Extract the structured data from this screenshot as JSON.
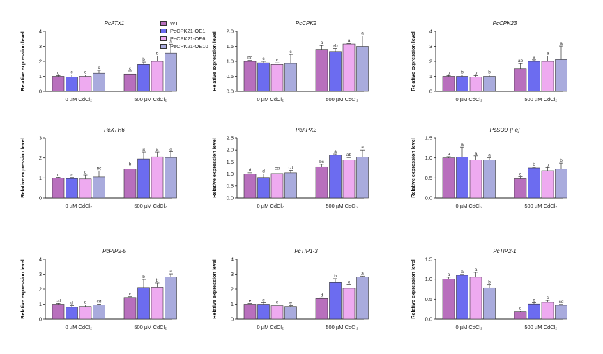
{
  "legend": [
    {
      "name": "WT",
      "color": "#b86fbd"
    },
    {
      "name": "PeCPK21-OE1",
      "color": "#6c6cf0"
    },
    {
      "name": "PeCPK21-OE6",
      "color": "#eeaaf0"
    },
    {
      "name": "PeCPK21-OE10",
      "color": "#a9abdd"
    }
  ],
  "chart_data": [
    {
      "type": "bar",
      "title": "PcATX1",
      "ylabel": "Relative expression level",
      "ylim": [
        0,
        4
      ],
      "yticks": [
        0,
        1,
        2,
        3,
        4
      ],
      "ytick_labels": [
        "0",
        "1",
        "2",
        "3",
        "4"
      ],
      "groups": [
        {
          "label": "0 µM CdCl₂",
          "values": [
            1.0,
            0.95,
            1.0,
            1.2
          ],
          "errors": [
            0.05,
            0.15,
            0.1,
            0.2
          ],
          "letters": [
            "c",
            "c",
            "c",
            "c"
          ]
        },
        {
          "label": "500 µM CdCl₂",
          "values": [
            1.15,
            1.8,
            2.0,
            2.55
          ],
          "errors": [
            0.2,
            0.15,
            0.35,
            0.6
          ],
          "letters": [
            "c",
            "b",
            "b",
            "a"
          ]
        }
      ]
    },
    {
      "type": "bar",
      "title": "PcCPK2",
      "ylabel": "Relative expression level",
      "ylim": [
        0,
        2
      ],
      "yticks": [
        0,
        0.5,
        1,
        1.5,
        2
      ],
      "ytick_labels": [
        "0.0",
        "0.5",
        "1.0",
        "1.5",
        "2.0"
      ],
      "groups": [
        {
          "label": "0 µM CdCl₂",
          "values": [
            1.0,
            0.95,
            0.9,
            0.93
          ],
          "errors": [
            0.03,
            0.05,
            0.05,
            0.3
          ],
          "letters": [
            "bc",
            "c",
            "c",
            "c"
          ]
        },
        {
          "label": "500 µM CdCl₂",
          "values": [
            1.38,
            1.33,
            1.58,
            1.5
          ],
          "errors": [
            0.15,
            0.1,
            0.02,
            0.35
          ],
          "letters": [
            "a",
            "ab",
            "a",
            "a"
          ]
        }
      ]
    },
    {
      "type": "bar",
      "title": "PcCPK23",
      "ylabel": "Relative expression level",
      "ylim": [
        0,
        4
      ],
      "yticks": [
        0,
        1,
        2,
        3,
        4
      ],
      "ytick_labels": [
        "0",
        "1",
        "2",
        "3",
        "4"
      ],
      "groups": [
        {
          "label": "0 µM CdCl₂",
          "values": [
            1.0,
            1.0,
            0.95,
            1.0
          ],
          "errors": [
            0.05,
            0.1,
            0.1,
            0.1
          ],
          "letters": [
            "b",
            "b",
            "b",
            "b"
          ]
        },
        {
          "label": "500 µM CdCl₂",
          "values": [
            1.5,
            2.0,
            2.0,
            2.12
          ],
          "errors": [
            0.35,
            0.1,
            0.35,
            0.9
          ],
          "letters": [
            "ab",
            "a",
            "a",
            "a"
          ]
        }
      ]
    },
    {
      "type": "bar",
      "title": "PcXTH6",
      "ylabel": "Relative expression level",
      "ylim": [
        0,
        3
      ],
      "yticks": [
        0,
        1,
        2,
        3
      ],
      "ytick_labels": [
        "0",
        "1",
        "2",
        "3"
      ],
      "groups": [
        {
          "label": "0 µM CdCl₂",
          "values": [
            1.0,
            0.97,
            0.95,
            1.05
          ],
          "errors": [
            0.03,
            0.05,
            0.2,
            0.3
          ],
          "letters": [
            "c",
            "c",
            "c",
            "bc"
          ]
        },
        {
          "label": "500 µM CdCl₂",
          "values": [
            1.45,
            1.95,
            2.05,
            2.02
          ],
          "errors": [
            0.1,
            0.35,
            0.25,
            0.3
          ],
          "letters": [
            "b",
            "a",
            "a",
            "a"
          ]
        }
      ]
    },
    {
      "type": "bar",
      "title": "PcAPX2",
      "ylabel": "Relative expression level",
      "ylim": [
        0,
        2.5
      ],
      "yticks": [
        0,
        0.5,
        1,
        1.5,
        2,
        2.5
      ],
      "ytick_labels": [
        "0.0",
        "0.5",
        "1.0",
        "1.5",
        "2.0",
        "2.5"
      ],
      "groups": [
        {
          "label": "0 µM CdCl₂",
          "values": [
            1.0,
            0.85,
            1.02,
            1.05
          ],
          "errors": [
            0.05,
            0.15,
            0.1,
            0.1
          ],
          "letters": [
            "d",
            "d",
            "cd",
            "cd"
          ]
        },
        {
          "label": "500 µM CdCl₂",
          "values": [
            1.3,
            1.78,
            1.58,
            1.7
          ],
          "errors": [
            0.1,
            0.05,
            0.1,
            0.3
          ],
          "letters": [
            "bc",
            "a",
            "ab",
            "a"
          ]
        }
      ]
    },
    {
      "type": "bar",
      "title": "PcSOD [Fe]",
      "ylabel": "Relative expression level",
      "ylim": [
        0,
        1.5
      ],
      "yticks": [
        0,
        0.5,
        1,
        1.5
      ],
      "ytick_labels": [
        "0.0",
        "0.5",
        "1.0",
        "1.5"
      ],
      "groups": [
        {
          "label": "0 µM CdCl₂",
          "values": [
            1.0,
            1.02,
            0.95,
            0.95
          ],
          "errors": [
            0.03,
            0.25,
            0.1,
            0.05
          ],
          "letters": [
            "a",
            "a",
            "a",
            "a"
          ]
        },
        {
          "label": "500 µM CdCl₂",
          "values": [
            0.48,
            0.75,
            0.68,
            0.72
          ],
          "errors": [
            0.05,
            0.02,
            0.08,
            0.15
          ],
          "letters": [
            "c",
            "b",
            "b",
            "b"
          ]
        }
      ]
    },
    {
      "type": "bar",
      "title": "PcPIP2-5",
      "ylabel": "Relative expression level",
      "ylim": [
        0,
        4
      ],
      "yticks": [
        0,
        1,
        2,
        3,
        4
      ],
      "ytick_labels": [
        "0",
        "1",
        "2",
        "3",
        "4"
      ],
      "groups": [
        {
          "label": "0 µM CdCl₂",
          "values": [
            1.0,
            0.8,
            0.85,
            0.95
          ],
          "errors": [
            0.05,
            0.1,
            0.1,
            0.05
          ],
          "letters": [
            "cd",
            "d",
            "d",
            "cd"
          ]
        },
        {
          "label": "500 µM CdCl₂",
          "values": [
            1.45,
            2.1,
            2.12,
            2.82
          ],
          "errors": [
            0.05,
            0.55,
            0.3,
            0.2
          ],
          "letters": [
            "c",
            "b",
            "b",
            "a"
          ]
        }
      ]
    },
    {
      "type": "bar",
      "title": "PcTIP1-3",
      "ylabel": "Relative expression level",
      "ylim": [
        0,
        4
      ],
      "yticks": [
        0,
        1,
        2,
        3,
        4
      ],
      "ytick_labels": [
        "0",
        "1",
        "2",
        "3",
        "4"
      ],
      "groups": [
        {
          "label": "0 µM CdCl₂",
          "values": [
            1.0,
            1.0,
            0.9,
            0.85
          ],
          "errors": [
            0.05,
            0.1,
            0.05,
            0.05
          ],
          "letters": [
            "e",
            "e",
            "e",
            "e"
          ]
        },
        {
          "label": "500 µM CdCl₂",
          "values": [
            1.38,
            2.45,
            2.05,
            2.82
          ],
          "errors": [
            0.05,
            0.25,
            0.25,
            0.05
          ],
          "letters": [
            "d",
            "b",
            "c",
            "a"
          ]
        }
      ]
    },
    {
      "type": "bar",
      "title": "PcTIP2-1",
      "ylabel": "Relative expression level",
      "ylim": [
        0,
        1.5
      ],
      "yticks": [
        0,
        0.5,
        1,
        1.5
      ],
      "ytick_labels": [
        "0.0",
        "0.5",
        "1.0",
        "1.5"
      ],
      "groups": [
        {
          "label": "0 µM CdCl₂",
          "values": [
            1.0,
            1.1,
            1.05,
            0.78
          ],
          "errors": [
            0.05,
            0.02,
            0.12,
            0.08
          ],
          "letters": [
            "a",
            "a",
            "a",
            "b"
          ]
        },
        {
          "label": "500 µM CdCl₂",
          "values": [
            0.18,
            0.38,
            0.42,
            0.35
          ],
          "errors": [
            0.02,
            0.03,
            0.05,
            0.02
          ],
          "letters": [
            "d",
            "c",
            "c",
            "cd"
          ]
        }
      ]
    }
  ]
}
